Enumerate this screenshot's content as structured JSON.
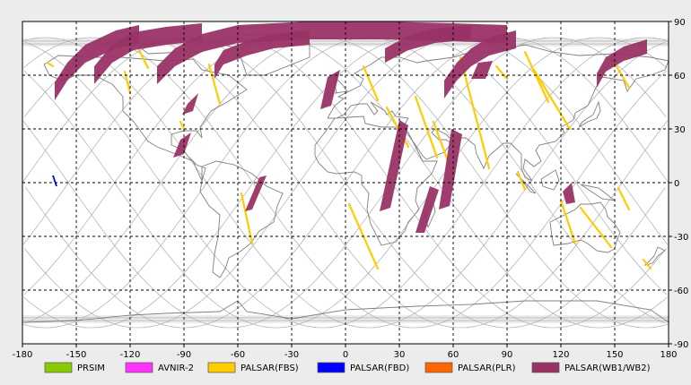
{
  "map": {
    "x_ticks": [
      "-180",
      "-150",
      "-120",
      "-90",
      "-60",
      "-30",
      "0",
      "30",
      "60",
      "90",
      "120",
      "150",
      "180"
    ],
    "y_ticks_right": [
      "90",
      "60",
      "30",
      "0",
      "-30",
      "-60",
      "-90"
    ],
    "xlim": [
      -180,
      180
    ],
    "ylim": [
      -90,
      90
    ],
    "grid": "dashed"
  },
  "legend": [
    {
      "label": "PRSIM",
      "color": "#88cc00"
    },
    {
      "label": "AVNIR-2",
      "color": "#ff33ff"
    },
    {
      "label": "PALSAR(FBS)",
      "color": "#ffcc00"
    },
    {
      "label": "PALSAR(FBD)",
      "color": "#0000ff"
    },
    {
      "label": "PALSAR(PLR)",
      "color": "#ff6600"
    },
    {
      "label": "PALSAR(WB1/WB2)",
      "color": "#993366"
    }
  ],
  "colors": {
    "background": "#ffffff",
    "orbit": "#b4b4b4",
    "coast": "#808080",
    "fbs": "#ffcc00",
    "fbd": "#0000ff",
    "wb": "#993366"
  }
}
